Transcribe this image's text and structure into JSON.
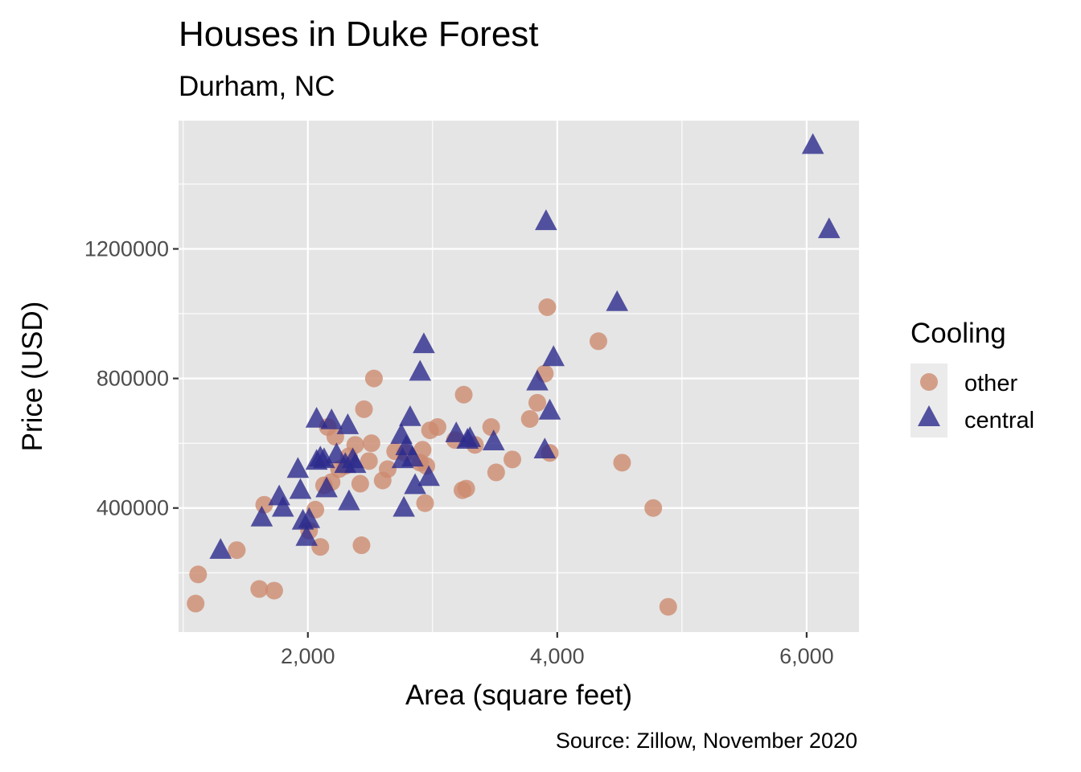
{
  "chart_data": {
    "type": "scatter",
    "title": "Houses in Duke Forest",
    "subtitle": "Durham, NC",
    "xlabel": "Area (square feet)",
    "ylabel": "Price (USD)",
    "caption": "Source: Zillow, November 2020",
    "xlim": [
      963,
      6420
    ],
    "ylim": [
      17000,
      1596000
    ],
    "x_ticks": [
      2000,
      4000,
      6000
    ],
    "x_tick_labels": [
      "2,000",
      "4,000",
      "6,000"
    ],
    "x_minor_ticks": [
      1000,
      3000,
      5000
    ],
    "y_ticks": [
      400000,
      800000,
      1200000
    ],
    "y_tick_labels": [
      "400000",
      "800000",
      "1200000"
    ],
    "y_minor_ticks": [
      200000,
      600000,
      1000000,
      1400000
    ],
    "grid": true,
    "legend": {
      "title": "Cooling",
      "placement": "right",
      "entries": [
        "other",
        "central"
      ]
    },
    "colors": {
      "panel_bg": "#e5e5e5",
      "grid": "#ffffff",
      "other": "#cd8b6f",
      "central": "#2c2a8c"
    },
    "series": [
      {
        "name": "other",
        "shape": "circle",
        "points": [
          [
            1100,
            105000
          ],
          [
            1120,
            195000
          ],
          [
            1430,
            270000
          ],
          [
            1610,
            150000
          ],
          [
            1650,
            410000
          ],
          [
            1730,
            145000
          ],
          [
            2010,
            330000
          ],
          [
            2060,
            395000
          ],
          [
            2100,
            280000
          ],
          [
            2130,
            470000
          ],
          [
            2160,
            650000
          ],
          [
            2190,
            480000
          ],
          [
            2220,
            620000
          ],
          [
            2250,
            520000
          ],
          [
            2300,
            530000
          ],
          [
            2330,
            560000
          ],
          [
            2380,
            595000
          ],
          [
            2420,
            475000
          ],
          [
            2430,
            285000
          ],
          [
            2450,
            705000
          ],
          [
            2490,
            545000
          ],
          [
            2510,
            600000
          ],
          [
            2530,
            800000
          ],
          [
            2600,
            485000
          ],
          [
            2640,
            520000
          ],
          [
            2700,
            575000
          ],
          [
            2780,
            570000
          ],
          [
            2900,
            540000
          ],
          [
            2920,
            580000
          ],
          [
            2940,
            415000
          ],
          [
            2950,
            530000
          ],
          [
            2980,
            640000
          ],
          [
            3040,
            650000
          ],
          [
            3180,
            610000
          ],
          [
            3240,
            455000
          ],
          [
            3250,
            750000
          ],
          [
            3270,
            460000
          ],
          [
            3340,
            595000
          ],
          [
            3470,
            650000
          ],
          [
            3510,
            510000
          ],
          [
            3640,
            550000
          ],
          [
            3780,
            675000
          ],
          [
            3840,
            725000
          ],
          [
            3900,
            815000
          ],
          [
            3920,
            1020000
          ],
          [
            3940,
            570000
          ],
          [
            4330,
            915000
          ],
          [
            4520,
            540000
          ],
          [
            4770,
            400000
          ],
          [
            4890,
            95000
          ]
        ]
      },
      {
        "name": "central",
        "shape": "triangle",
        "points": [
          [
            1300,
            270000
          ],
          [
            1630,
            370000
          ],
          [
            1770,
            435000
          ],
          [
            1800,
            400000
          ],
          [
            1920,
            520000
          ],
          [
            1940,
            455000
          ],
          [
            1960,
            360000
          ],
          [
            1990,
            310000
          ],
          [
            2010,
            365000
          ],
          [
            2070,
            675000
          ],
          [
            2070,
            545000
          ],
          [
            2100,
            555000
          ],
          [
            2130,
            550000
          ],
          [
            2150,
            460000
          ],
          [
            2190,
            670000
          ],
          [
            2230,
            565000
          ],
          [
            2300,
            535000
          ],
          [
            2320,
            655000
          ],
          [
            2330,
            420000
          ],
          [
            2360,
            550000
          ],
          [
            2380,
            535000
          ],
          [
            2750,
            625000
          ],
          [
            2760,
            550000
          ],
          [
            2770,
            400000
          ],
          [
            2790,
            590000
          ],
          [
            2820,
            680000
          ],
          [
            2840,
            555000
          ],
          [
            2860,
            470000
          ],
          [
            2900,
            820000
          ],
          [
            2930,
            905000
          ],
          [
            2970,
            495000
          ],
          [
            3190,
            630000
          ],
          [
            3280,
            610000
          ],
          [
            3300,
            615000
          ],
          [
            3490,
            605000
          ],
          [
            3840,
            790000
          ],
          [
            3900,
            580000
          ],
          [
            3910,
            1285000
          ],
          [
            3940,
            700000
          ],
          [
            3970,
            865000
          ],
          [
            4480,
            1035000
          ],
          [
            6050,
            1520000
          ],
          [
            6180,
            1260000
          ]
        ]
      }
    ]
  }
}
